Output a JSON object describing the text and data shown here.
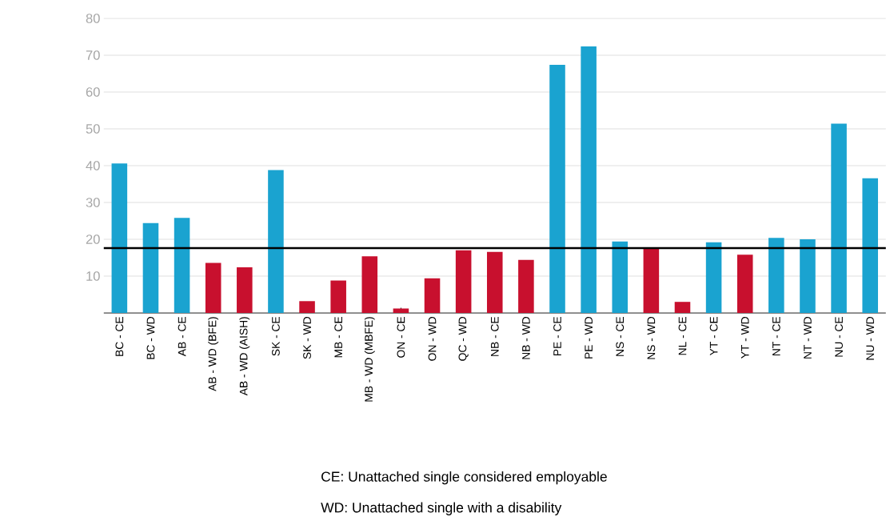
{
  "chart_data": {
    "type": "bar",
    "categories": [
      "BC - CE",
      "BC - WD",
      "AB - CE",
      "AB - WD (BFE)",
      "AB - WD (AISH)",
      "SK - CE",
      "SK - WD",
      "MB - CE",
      "MB - WD (MBFE)",
      "ON - CE",
      "ON - WD",
      "QC - WD",
      "NB - CE",
      "NB - WD",
      "PE - CE",
      "PE - WD",
      "NS - CE",
      "NS - WD",
      "NL - CE",
      "YT - CE",
      "YT - WD",
      "NT - CE",
      "NT - WD",
      "NU - CE",
      "NU - WD"
    ],
    "values": [
      40.6,
      24.4,
      25.8,
      13.6,
      12.4,
      38.8,
      3.2,
      8.8,
      15.4,
      1.2,
      9.4,
      17.0,
      16.6,
      14.4,
      67.4,
      72.4,
      19.4,
      17.6,
      3.0,
      19.2,
      15.8,
      20.4,
      20.0,
      51.4,
      36.6
    ],
    "colors": [
      "#1aa3d0",
      "#1aa3d0",
      "#1aa3d0",
      "#c8102e",
      "#c8102e",
      "#1aa3d0",
      "#c8102e",
      "#c8102e",
      "#c8102e",
      "#c8102e",
      "#c8102e",
      "#c8102e",
      "#c8102e",
      "#c8102e",
      "#1aa3d0",
      "#1aa3d0",
      "#1aa3d0",
      "#c8102e",
      "#c8102e",
      "#1aa3d0",
      "#c8102e",
      "#1aa3d0",
      "#1aa3d0",
      "#1aa3d0",
      "#1aa3d0"
    ],
    "ylim": [
      0,
      80
    ],
    "yticks": [
      10,
      20,
      30,
      40,
      50,
      60,
      70,
      80
    ],
    "grid": "y",
    "ref_lines": [
      {
        "axis": "y",
        "value": 17.6,
        "color": "#000000"
      }
    ],
    "annotations": [
      "CE: Unattached single considered employable",
      "WD: Unattached single with a disability"
    ]
  }
}
